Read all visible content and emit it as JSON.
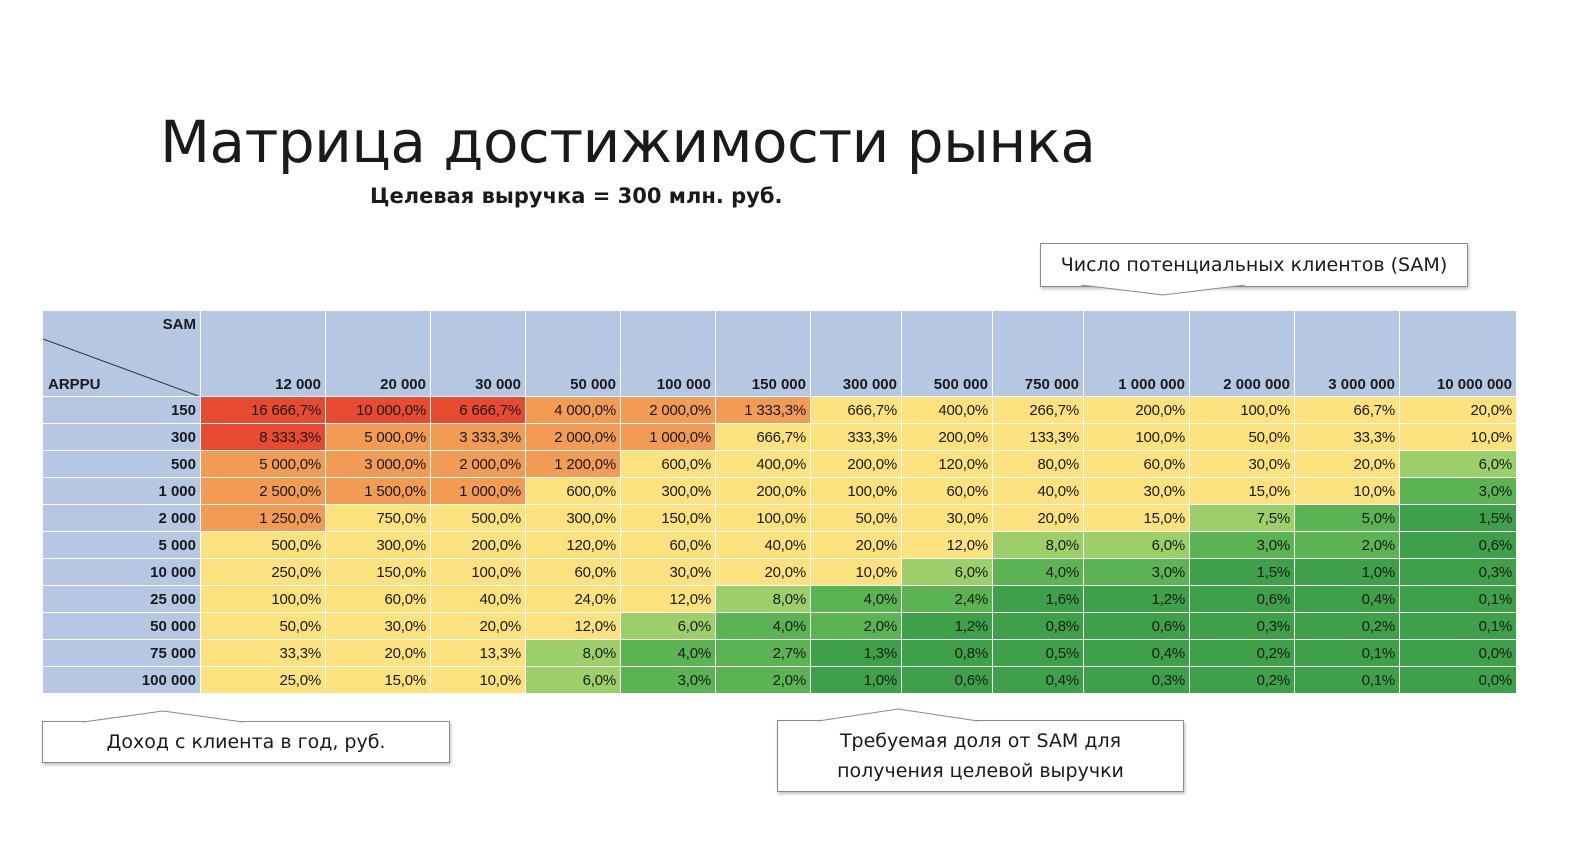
{
  "title": "Матрица достижимости рынка",
  "subtitle": "Целевая выручка = 300 млн. руб.",
  "callouts": {
    "sam": "Число потенциальных клиентов (SAM)",
    "arppu": "Доход с клиента в год, руб.",
    "share_line1": "Требуемая доля от SAM для",
    "share_line2": "получения целевой выручки"
  },
  "corner": {
    "sam": "SAM",
    "arppu": "ARPPU"
  },
  "colors": {
    "header": "#b5c7e3",
    "red": "#e84a31",
    "orange": "#f29b55",
    "yellow": "#fbe27f",
    "light_green": "#9ccf6a",
    "green": "#5bb354",
    "dark_green": "#3fa04a"
  },
  "chart_data": {
    "type": "heatmap",
    "title": "Матрица достижимости рынка",
    "subtitle": "Целевая выручка = 300 млн. руб.",
    "xlabel": "SAM",
    "ylabel": "ARPPU",
    "columns": [
      "12 000",
      "20 000",
      "30 000",
      "50 000",
      "100 000",
      "150 000",
      "300 000",
      "500 000",
      "750 000",
      "1 000 000",
      "2 000 000",
      "3 000 000",
      "10 000 000"
    ],
    "rows": [
      "150",
      "300",
      "500",
      "1 000",
      "2 000",
      "5 000",
      "10 000",
      "25 000",
      "50 000",
      "75 000",
      "100 000"
    ],
    "values": [
      [
        "16 666,7%",
        "10 000,0%",
        "6 666,7%",
        "4 000,0%",
        "2 000,0%",
        "1 333,3%",
        "666,7%",
        "400,0%",
        "266,7%",
        "200,0%",
        "100,0%",
        "66,7%",
        "20,0%"
      ],
      [
        "8 333,3%",
        "5 000,0%",
        "3 333,3%",
        "2 000,0%",
        "1 000,0%",
        "666,7%",
        "333,3%",
        "200,0%",
        "133,3%",
        "100,0%",
        "50,0%",
        "33,3%",
        "10,0%"
      ],
      [
        "5 000,0%",
        "3 000,0%",
        "2 000,0%",
        "1 200,0%",
        "600,0%",
        "400,0%",
        "200,0%",
        "120,0%",
        "80,0%",
        "60,0%",
        "30,0%",
        "20,0%",
        "6,0%"
      ],
      [
        "2 500,0%",
        "1 500,0%",
        "1 000,0%",
        "600,0%",
        "300,0%",
        "200,0%",
        "100,0%",
        "60,0%",
        "40,0%",
        "30,0%",
        "15,0%",
        "10,0%",
        "3,0%"
      ],
      [
        "1 250,0%",
        "750,0%",
        "500,0%",
        "300,0%",
        "150,0%",
        "100,0%",
        "50,0%",
        "30,0%",
        "20,0%",
        "15,0%",
        "7,5%",
        "5,0%",
        "1,5%"
      ],
      [
        "500,0%",
        "300,0%",
        "200,0%",
        "120,0%",
        "60,0%",
        "40,0%",
        "20,0%",
        "12,0%",
        "8,0%",
        "6,0%",
        "3,0%",
        "2,0%",
        "0,6%"
      ],
      [
        "250,0%",
        "150,0%",
        "100,0%",
        "60,0%",
        "30,0%",
        "20,0%",
        "10,0%",
        "6,0%",
        "4,0%",
        "3,0%",
        "1,5%",
        "1,0%",
        "0,3%"
      ],
      [
        "100,0%",
        "60,0%",
        "40,0%",
        "24,0%",
        "12,0%",
        "8,0%",
        "4,0%",
        "2,4%",
        "1,6%",
        "1,2%",
        "0,6%",
        "0,4%",
        "0,1%"
      ],
      [
        "50,0%",
        "30,0%",
        "20,0%",
        "12,0%",
        "6,0%",
        "4,0%",
        "2,0%",
        "1,2%",
        "0,8%",
        "0,6%",
        "0,3%",
        "0,2%",
        "0,1%"
      ],
      [
        "33,3%",
        "20,0%",
        "13,3%",
        "8,0%",
        "4,0%",
        "2,7%",
        "1,3%",
        "0,8%",
        "0,5%",
        "0,4%",
        "0,2%",
        "0,1%",
        "0,0%"
      ],
      [
        "25,0%",
        "15,0%",
        "10,0%",
        "6,0%",
        "3,0%",
        "2,0%",
        "1,0%",
        "0,6%",
        "0,4%",
        "0,3%",
        "0,2%",
        "0,1%",
        "0,0%"
      ]
    ]
  }
}
